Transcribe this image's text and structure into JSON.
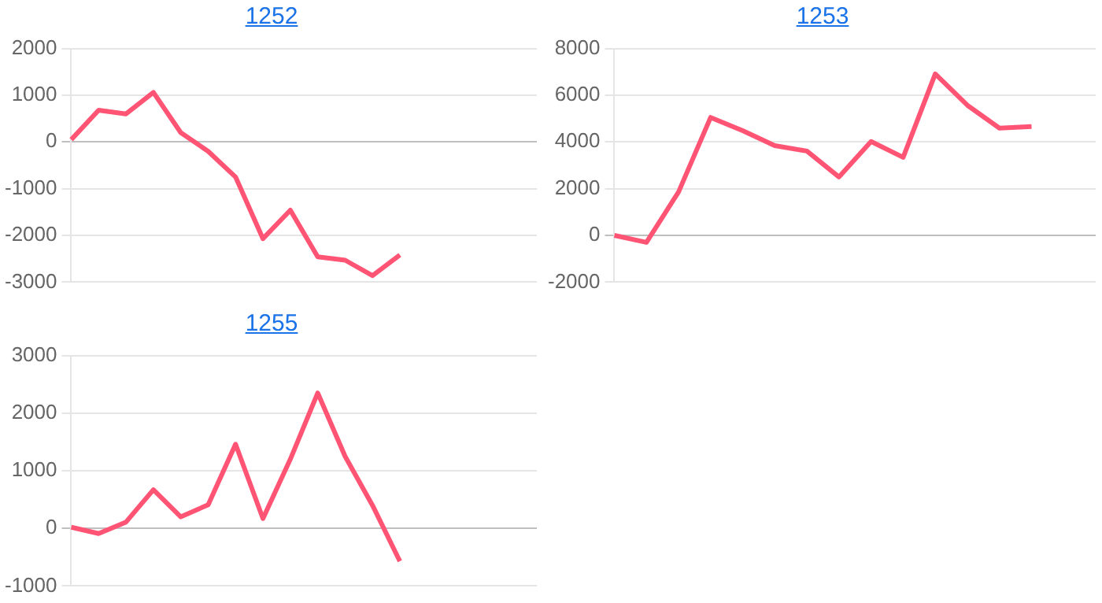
{
  "chart_data": [
    {
      "type": "line",
      "title": "1252",
      "categories": [
        null,
        null,
        null,
        null,
        null,
        null,
        null,
        null,
        null,
        null,
        null,
        null,
        null,
        null,
        null,
        null,
        null,
        null
      ],
      "series": [
        {
          "color": "#ff5473",
          "values": [
            50,
            680,
            600,
            1060,
            200,
            -200,
            -750,
            -2070,
            -1460,
            -2460,
            -2530,
            -2860,
            -2420,
            null,
            null,
            null,
            null,
            null
          ]
        }
      ],
      "ylim": [
        -3000,
        2000
      ],
      "yticks": [
        -3000,
        -2000,
        -1000,
        0,
        1000,
        2000
      ],
      "grid": "y",
      "tick_labels": "y",
      "legend": false,
      "marker": "none",
      "line_style": "solid"
    },
    {
      "type": "line",
      "title": "1253",
      "categories": [
        null,
        null,
        null,
        null,
        null,
        null,
        null,
        null,
        null,
        null,
        null,
        null,
        null,
        null,
        null,
        null
      ],
      "series": [
        {
          "color": "#ff5473",
          "values": [
            0,
            -300,
            1860,
            5050,
            4480,
            3840,
            3610,
            2500,
            4020,
            3340,
            6910,
            5570,
            4590,
            4660,
            null,
            null
          ]
        }
      ],
      "ylim": [
        -2000,
        8000
      ],
      "yticks": [
        -2000,
        0,
        2000,
        4000,
        6000,
        8000
      ],
      "grid": "y",
      "tick_labels": "y",
      "legend": false,
      "marker": "none",
      "line_style": "solid"
    },
    {
      "type": "line",
      "title": "1255",
      "categories": [
        null,
        null,
        null,
        null,
        null,
        null,
        null,
        null,
        null,
        null,
        null,
        null,
        null,
        null,
        null,
        null,
        null,
        null
      ],
      "series": [
        {
          "color": "#ff5473",
          "values": [
            20,
            -90,
            110,
            670,
            200,
            410,
            1460,
            170,
            1200,
            2350,
            1250,
            400,
            -570,
            null,
            null,
            null,
            null,
            null
          ]
        }
      ],
      "ylim": [
        -1000,
        3000
      ],
      "yticks": [
        -1000,
        0,
        1000,
        2000,
        3000
      ],
      "grid": "y",
      "tick_labels": "y",
      "legend": false,
      "marker": "none",
      "line_style": "solid"
    }
  ]
}
